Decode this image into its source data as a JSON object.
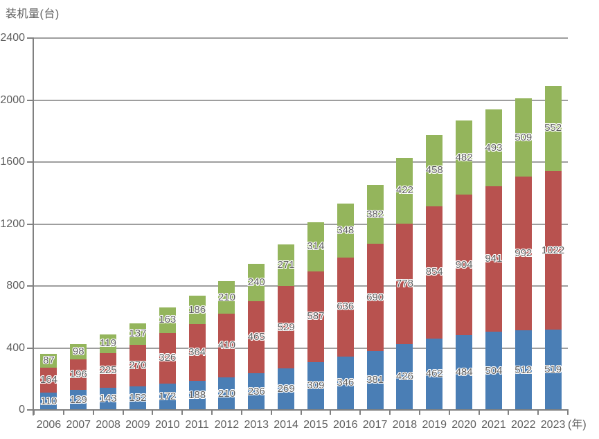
{
  "header": {
    "title": "装机量(台)"
  },
  "style": {
    "bar_blue": "#4A7EB5",
    "bar_red": "#B8524F",
    "bar_green": "#94B55C",
    "axis_color": "#808080",
    "grid_color": "#9E9E9E",
    "text_color": "#5F5F5F",
    "label_halo": "#FFFFFF"
  },
  "chart_data": {
    "type": "bar",
    "stacked": true,
    "title": "装机量(台)",
    "ylabel": "装机量(台)",
    "xlabel_suffix": "(年)",
    "grid": true,
    "legend": false,
    "ylim": [
      0,
      2400
    ],
    "yticks": [
      0,
      400,
      800,
      1200,
      1600,
      2000,
      2400
    ],
    "categories": [
      "2006",
      "2007",
      "2008",
      "2009",
      "2010",
      "2011",
      "2012",
      "2013",
      "2014",
      "2015",
      "2016",
      "2017",
      "2018",
      "2019",
      "2020",
      "2021",
      "2022",
      "2023"
    ],
    "series": [
      {
        "name": "blue-bottom-series",
        "color": "#4A7EB5",
        "values": [
          110,
          129,
          143,
          152,
          172,
          188,
          210,
          236,
          269,
          309,
          346,
          381,
          426,
          462,
          484,
          504,
          512,
          519
        ]
      },
      {
        "name": "red-middle-series",
        "color": "#B8524F",
        "values": [
          164,
          196,
          225,
          270,
          326,
          364,
          410,
          465,
          529,
          587,
          636,
          690,
          778,
          854,
          904,
          941,
          992,
          1022
        ]
      },
      {
        "name": "green-top-series",
        "color": "#94B55C",
        "values": [
          87,
          98,
          119,
          137,
          163,
          186,
          210,
          240,
          271,
          314,
          348,
          382,
          422,
          458,
          482,
          493,
          509,
          552
        ]
      }
    ]
  }
}
